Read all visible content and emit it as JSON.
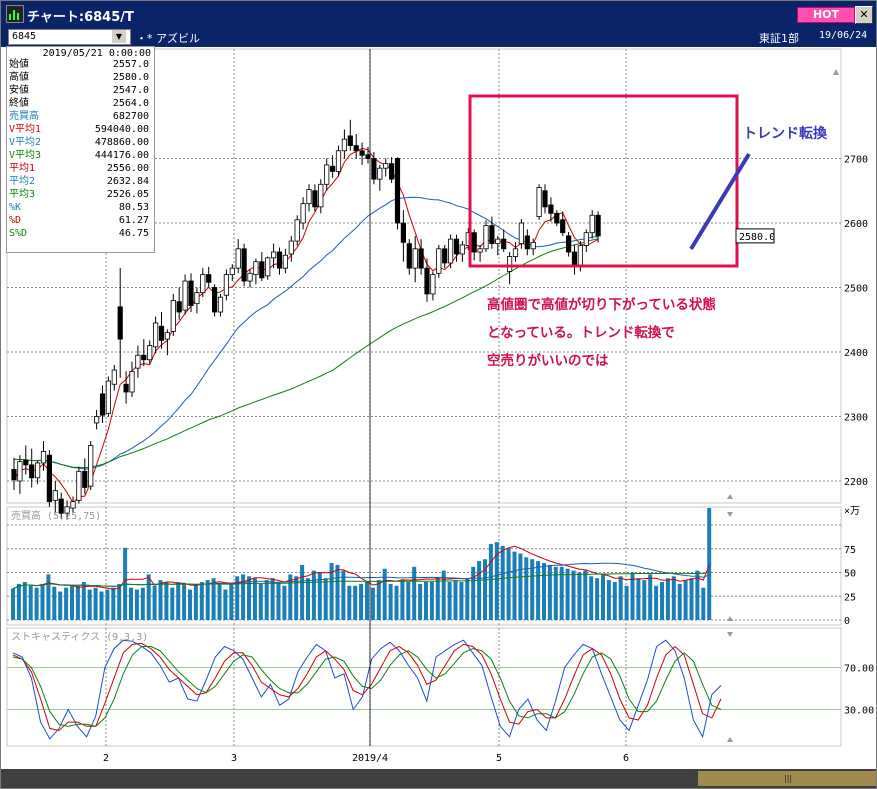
{
  "window": {
    "title": "チャート:6845/T",
    "hot_label": "HOT",
    "close_label": "✕"
  },
  "toolbar": {
    "code": "6845",
    "name": "アズビル",
    "market": "東証1部",
    "date": "19/06/24"
  },
  "info_panel": {
    "datetime": "2019/05/21 0:00:00",
    "rows": [
      {
        "label": "始値",
        "value": "2557.0",
        "color": "#000000"
      },
      {
        "label": "高値",
        "value": "2580.0",
        "color": "#000000"
      },
      {
        "label": "安値",
        "value": "2547.0",
        "color": "#000000"
      },
      {
        "label": "終値",
        "value": "2564.0",
        "color": "#000000"
      },
      {
        "label": "売買高",
        "value": "682700",
        "color": "#1a7fb8"
      },
      {
        "label": "V平均1",
        "value": "594040.00",
        "color": "#d00000"
      },
      {
        "label": "V平均2",
        "value": "478860.00",
        "color": "#1a7fb8"
      },
      {
        "label": "V平均3",
        "value": "444176.00",
        "color": "#108010"
      },
      {
        "label": "平均1",
        "value": "2556.00",
        "color": "#d00000"
      },
      {
        "label": "平均2",
        "value": "2632.84",
        "color": "#1a7fb8"
      },
      {
        "label": "平均3",
        "value": "2526.05",
        "color": "#108010"
      },
      {
        "label": "%K",
        "value": "80.53",
        "color": "#1a7fb8"
      },
      {
        "label": "%D",
        "value": "61.27",
        "color": "#d00000"
      },
      {
        "label": "S%D",
        "value": "46.75",
        "color": "#108010"
      }
    ]
  },
  "annotations": {
    "note_line1": "高値圏で高値が切り下がっている状態",
    "note_line2": "となっている。トレンド転換で",
    "note_line3": "空売りがいいのでは",
    "trend_label": "トレンド転換",
    "price_tag": "2580.0",
    "box_color": "#e0104a",
    "trend_line_color": "#3a3ab8"
  },
  "chart_data": [
    {
      "type": "candlestick",
      "panel": "price",
      "yticks": [
        2200,
        2300,
        2400,
        2500,
        2600,
        2700
      ],
      "xticks": [
        "2",
        "3",
        "2019/4",
        "5",
        "6"
      ],
      "current_price": 2580.0,
      "series_names": [
        "平均1",
        "平均2",
        "平均3"
      ],
      "candles": [
        {
          "o": 2218,
          "h": 2236,
          "l": 2186,
          "c": 2202
        },
        {
          "o": 2200,
          "h": 2240,
          "l": 2180,
          "c": 2230
        },
        {
          "o": 2232,
          "h": 2255,
          "l": 2210,
          "c": 2225
        },
        {
          "o": 2225,
          "h": 2250,
          "l": 2190,
          "c": 2205
        },
        {
          "o": 2205,
          "h": 2232,
          "l": 2195,
          "c": 2228
        },
        {
          "o": 2228,
          "h": 2262,
          "l": 2216,
          "c": 2246
        },
        {
          "o": 2240,
          "h": 2248,
          "l": 2160,
          "c": 2168
        },
        {
          "o": 2170,
          "h": 2200,
          "l": 2150,
          "c": 2185
        },
        {
          "o": 2172,
          "h": 2182,
          "l": 2142,
          "c": 2150
        },
        {
          "o": 2150,
          "h": 2170,
          "l": 2140,
          "c": 2160
        },
        {
          "o": 2158,
          "h": 2176,
          "l": 2152,
          "c": 2168
        },
        {
          "o": 2170,
          "h": 2222,
          "l": 2165,
          "c": 2215
        },
        {
          "o": 2215,
          "h": 2235,
          "l": 2180,
          "c": 2190
        },
        {
          "o": 2192,
          "h": 2262,
          "l": 2186,
          "c": 2255
        },
        {
          "o": 2290,
          "h": 2310,
          "l": 2280,
          "c": 2300
        },
        {
          "o": 2335,
          "h": 2348,
          "l": 2290,
          "c": 2302
        },
        {
          "o": 2305,
          "h": 2362,
          "l": 2300,
          "c": 2355
        },
        {
          "o": 2350,
          "h": 2380,
          "l": 2340,
          "c": 2372
        },
        {
          "o": 2470,
          "h": 2530,
          "l": 2360,
          "c": 2420
        },
        {
          "o": 2350,
          "h": 2370,
          "l": 2320,
          "c": 2338
        },
        {
          "o": 2338,
          "h": 2385,
          "l": 2330,
          "c": 2370
        },
        {
          "o": 2375,
          "h": 2410,
          "l": 2360,
          "c": 2395
        },
        {
          "o": 2395,
          "h": 2420,
          "l": 2378,
          "c": 2388
        },
        {
          "o": 2388,
          "h": 2418,
          "l": 2382,
          "c": 2410
        },
        {
          "o": 2408,
          "h": 2455,
          "l": 2398,
          "c": 2445
        },
        {
          "o": 2440,
          "h": 2462,
          "l": 2405,
          "c": 2418
        },
        {
          "o": 2420,
          "h": 2435,
          "l": 2395,
          "c": 2430
        },
        {
          "o": 2432,
          "h": 2490,
          "l": 2425,
          "c": 2480
        },
        {
          "o": 2478,
          "h": 2500,
          "l": 2450,
          "c": 2462
        },
        {
          "o": 2465,
          "h": 2520,
          "l": 2458,
          "c": 2510
        },
        {
          "o": 2510,
          "h": 2522,
          "l": 2462,
          "c": 2472
        },
        {
          "o": 2475,
          "h": 2500,
          "l": 2460,
          "c": 2492
        },
        {
          "o": 2492,
          "h": 2530,
          "l": 2485,
          "c": 2520
        },
        {
          "o": 2520,
          "h": 2532,
          "l": 2500,
          "c": 2508
        },
        {
          "o": 2500,
          "h": 2505,
          "l": 2455,
          "c": 2462
        },
        {
          "o": 2462,
          "h": 2490,
          "l": 2455,
          "c": 2485
        },
        {
          "o": 2488,
          "h": 2528,
          "l": 2480,
          "c": 2520
        },
        {
          "o": 2520,
          "h": 2536,
          "l": 2510,
          "c": 2530
        },
        {
          "o": 2530,
          "h": 2575,
          "l": 2522,
          "c": 2560
        },
        {
          "o": 2560,
          "h": 2568,
          "l": 2502,
          "c": 2510
        },
        {
          "o": 2510,
          "h": 2528,
          "l": 2500,
          "c": 2522
        },
        {
          "o": 2520,
          "h": 2545,
          "l": 2505,
          "c": 2540
        },
        {
          "o": 2540,
          "h": 2555,
          "l": 2510,
          "c": 2515
        },
        {
          "o": 2518,
          "h": 2548,
          "l": 2512,
          "c": 2546
        },
        {
          "o": 2546,
          "h": 2568,
          "l": 2530,
          "c": 2555
        },
        {
          "o": 2555,
          "h": 2562,
          "l": 2520,
          "c": 2530
        },
        {
          "o": 2530,
          "h": 2560,
          "l": 2522,
          "c": 2550
        },
        {
          "o": 2552,
          "h": 2580,
          "l": 2540,
          "c": 2572
        },
        {
          "o": 2572,
          "h": 2612,
          "l": 2565,
          "c": 2605
        },
        {
          "o": 2600,
          "h": 2640,
          "l": 2590,
          "c": 2630
        },
        {
          "o": 2630,
          "h": 2660,
          "l": 2618,
          "c": 2652
        },
        {
          "o": 2650,
          "h": 2660,
          "l": 2618,
          "c": 2625
        },
        {
          "o": 2625,
          "h": 2668,
          "l": 2615,
          "c": 2660
        },
        {
          "o": 2660,
          "h": 2700,
          "l": 2650,
          "c": 2690
        },
        {
          "o": 2688,
          "h": 2705,
          "l": 2670,
          "c": 2680
        },
        {
          "o": 2680,
          "h": 2720,
          "l": 2672,
          "c": 2712
        },
        {
          "o": 2712,
          "h": 2745,
          "l": 2700,
          "c": 2730
        },
        {
          "o": 2735,
          "h": 2760,
          "l": 2712,
          "c": 2720
        },
        {
          "o": 2720,
          "h": 2738,
          "l": 2700,
          "c": 2712
        },
        {
          "o": 2712,
          "h": 2725,
          "l": 2690,
          "c": 2705
        },
        {
          "o": 2706,
          "h": 2718,
          "l": 2692,
          "c": 2700
        },
        {
          "o": 2700,
          "h": 2710,
          "l": 2660,
          "c": 2668
        },
        {
          "o": 2668,
          "h": 2690,
          "l": 2650,
          "c": 2685
        },
        {
          "o": 2685,
          "h": 2700,
          "l": 2672,
          "c": 2692
        },
        {
          "o": 2692,
          "h": 2702,
          "l": 2662,
          "c": 2668
        },
        {
          "o": 2700,
          "h": 2702,
          "l": 2590,
          "c": 2600
        },
        {
          "o": 2600,
          "h": 2620,
          "l": 2540,
          "c": 2570
        },
        {
          "o": 2568,
          "h": 2575,
          "l": 2520,
          "c": 2530
        },
        {
          "o": 2530,
          "h": 2580,
          "l": 2508,
          "c": 2560
        },
        {
          "o": 2560,
          "h": 2575,
          "l": 2520,
          "c": 2530
        },
        {
          "o": 2530,
          "h": 2545,
          "l": 2478,
          "c": 2490
        },
        {
          "o": 2490,
          "h": 2525,
          "l": 2480,
          "c": 2520
        },
        {
          "o": 2522,
          "h": 2566,
          "l": 2515,
          "c": 2560
        },
        {
          "o": 2560,
          "h": 2566,
          "l": 2530,
          "c": 2538
        },
        {
          "o": 2538,
          "h": 2582,
          "l": 2530,
          "c": 2575
        },
        {
          "o": 2575,
          "h": 2582,
          "l": 2540,
          "c": 2552
        },
        {
          "o": 2552,
          "h": 2572,
          "l": 2540,
          "c": 2566
        },
        {
          "o": 2565,
          "h": 2592,
          "l": 2558,
          "c": 2585
        },
        {
          "o": 2585,
          "h": 2590,
          "l": 2542,
          "c": 2555
        },
        {
          "o": 2555,
          "h": 2566,
          "l": 2540,
          "c": 2560
        },
        {
          "o": 2560,
          "h": 2604,
          "l": 2555,
          "c": 2596
        },
        {
          "o": 2596,
          "h": 2610,
          "l": 2560,
          "c": 2568
        },
        {
          "o": 2568,
          "h": 2580,
          "l": 2550,
          "c": 2575
        },
        {
          "o": 2575,
          "h": 2590,
          "l": 2555,
          "c": 2560
        },
        {
          "o": 2525,
          "h": 2555,
          "l": 2505,
          "c": 2548
        },
        {
          "o": 2548,
          "h": 2570,
          "l": 2540,
          "c": 2560
        },
        {
          "o": 2568,
          "h": 2606,
          "l": 2560,
          "c": 2600
        },
        {
          "o": 2580,
          "h": 2590,
          "l": 2550,
          "c": 2560
        },
        {
          "o": 2560,
          "h": 2576,
          "l": 2550,
          "c": 2570
        },
        {
          "o": 2610,
          "h": 2660,
          "l": 2605,
          "c": 2655
        },
        {
          "o": 2650,
          "h": 2660,
          "l": 2615,
          "c": 2625
        },
        {
          "o": 2628,
          "h": 2640,
          "l": 2602,
          "c": 2615
        },
        {
          "o": 2615,
          "h": 2620,
          "l": 2595,
          "c": 2600
        },
        {
          "o": 2605,
          "h": 2618,
          "l": 2580,
          "c": 2585
        },
        {
          "o": 2580,
          "h": 2586,
          "l": 2548,
          "c": 2555
        },
        {
          "o": 2555,
          "h": 2566,
          "l": 2520,
          "c": 2532
        },
        {
          "o": 2532,
          "h": 2572,
          "l": 2525,
          "c": 2565
        },
        {
          "o": 2565,
          "h": 2590,
          "l": 2555,
          "c": 2585
        },
        {
          "o": 2585,
          "h": 2620,
          "l": 2576,
          "c": 2612
        },
        {
          "o": 2612,
          "h": 2618,
          "l": 2570,
          "c": 2580
        }
      ]
    },
    {
      "type": "bar",
      "panel": "volume",
      "title": "売買高 (5,25,75)",
      "unit": "×万",
      "yticks": [
        0,
        25,
        50,
        75
      ],
      "ylim": [
        0,
        120
      ],
      "series_names": [
        "V平均1",
        "V平均2",
        "V平均3"
      ],
      "values": [
        33,
        38,
        40,
        36,
        34,
        38,
        48,
        35,
        30,
        34,
        36,
        36,
        40,
        32,
        34,
        30,
        32,
        34,
        38,
        76,
        34,
        32,
        34,
        48,
        36,
        42,
        40,
        34,
        40,
        38,
        32,
        38,
        40,
        42,
        44,
        38,
        32,
        38,
        46,
        48,
        46,
        44,
        38,
        42,
        44,
        40,
        36,
        48,
        46,
        58,
        44,
        52,
        50,
        44,
        60,
        58,
        52,
        36,
        36,
        38,
        40,
        34,
        42,
        54,
        38,
        36,
        42,
        40,
        56,
        38,
        40,
        40,
        44,
        52,
        40,
        42,
        40,
        44,
        56,
        62,
        64,
        80,
        82,
        78,
        76,
        72,
        70,
        66,
        64,
        62,
        60,
        58,
        56,
        56,
        54,
        52,
        50,
        52,
        46,
        44,
        48,
        42,
        40,
        46,
        36,
        50,
        44,
        42,
        48,
        36,
        40,
        44,
        46,
        38,
        42,
        44,
        52,
        34,
        118
      ]
    },
    {
      "type": "line",
      "panel": "stochastics",
      "title": "ストキャスティクス (9,3,3)",
      "yticks": [
        30,
        70
      ],
      "ylim": [
        0,
        100
      ],
      "series": [
        {
          "name": "%K",
          "values": [
            84,
            80,
            60,
            18,
            2,
            12,
            30,
            14,
            4,
            24,
            70,
            88,
            96,
            95,
            90,
            84,
            72,
            56,
            60,
            40,
            38,
            58,
            80,
            90,
            86,
            78,
            60,
            42,
            54,
            34,
            40,
            66,
            80,
            92,
            86,
            60,
            64,
            30,
            42,
            78,
            88,
            94,
            86,
            72,
            60,
            38,
            80,
            86,
            92,
            96,
            84,
            72,
            42,
            14,
            4,
            30,
            40,
            20,
            10,
            38,
            70,
            82,
            92,
            88,
            64,
            42,
            20,
            10,
            34,
            58,
            90,
            96,
            86,
            60,
            20,
            4,
            44,
            53
          ]
        },
        {
          "name": "%D",
          "values": [
            82,
            78,
            66,
            40,
            12,
            10,
            18,
            18,
            14,
            14,
            36,
            60,
            84,
            92,
            93,
            88,
            80,
            68,
            60,
            52,
            44,
            46,
            60,
            76,
            84,
            84,
            72,
            56,
            50,
            44,
            42,
            50,
            64,
            80,
            86,
            78,
            68,
            48,
            44,
            54,
            70,
            86,
            90,
            84,
            72,
            54,
            58,
            72,
            86,
            92,
            90,
            82,
            64,
            40,
            18,
            16,
            28,
            30,
            22,
            22,
            40,
            62,
            82,
            88,
            82,
            64,
            40,
            22,
            20,
            34,
            60,
            82,
            90,
            82,
            54,
            26,
            22,
            40
          ]
        },
        {
          "name": "S%D",
          "values": [
            80,
            78,
            70,
            52,
            28,
            16,
            14,
            16,
            16,
            14,
            22,
            40,
            64,
            82,
            90,
            90,
            86,
            76,
            66,
            58,
            50,
            46,
            52,
            64,
            76,
            82,
            80,
            68,
            58,
            50,
            46,
            46,
            54,
            66,
            78,
            80,
            76,
            62,
            52,
            50,
            58,
            72,
            82,
            86,
            80,
            68,
            60,
            64,
            74,
            84,
            88,
            86,
            78,
            60,
            38,
            24,
            22,
            26,
            26,
            22,
            28,
            44,
            64,
            80,
            84,
            78,
            62,
            40,
            28,
            28,
            38,
            58,
            76,
            84,
            76,
            54,
            34,
            30
          ]
        }
      ]
    }
  ]
}
